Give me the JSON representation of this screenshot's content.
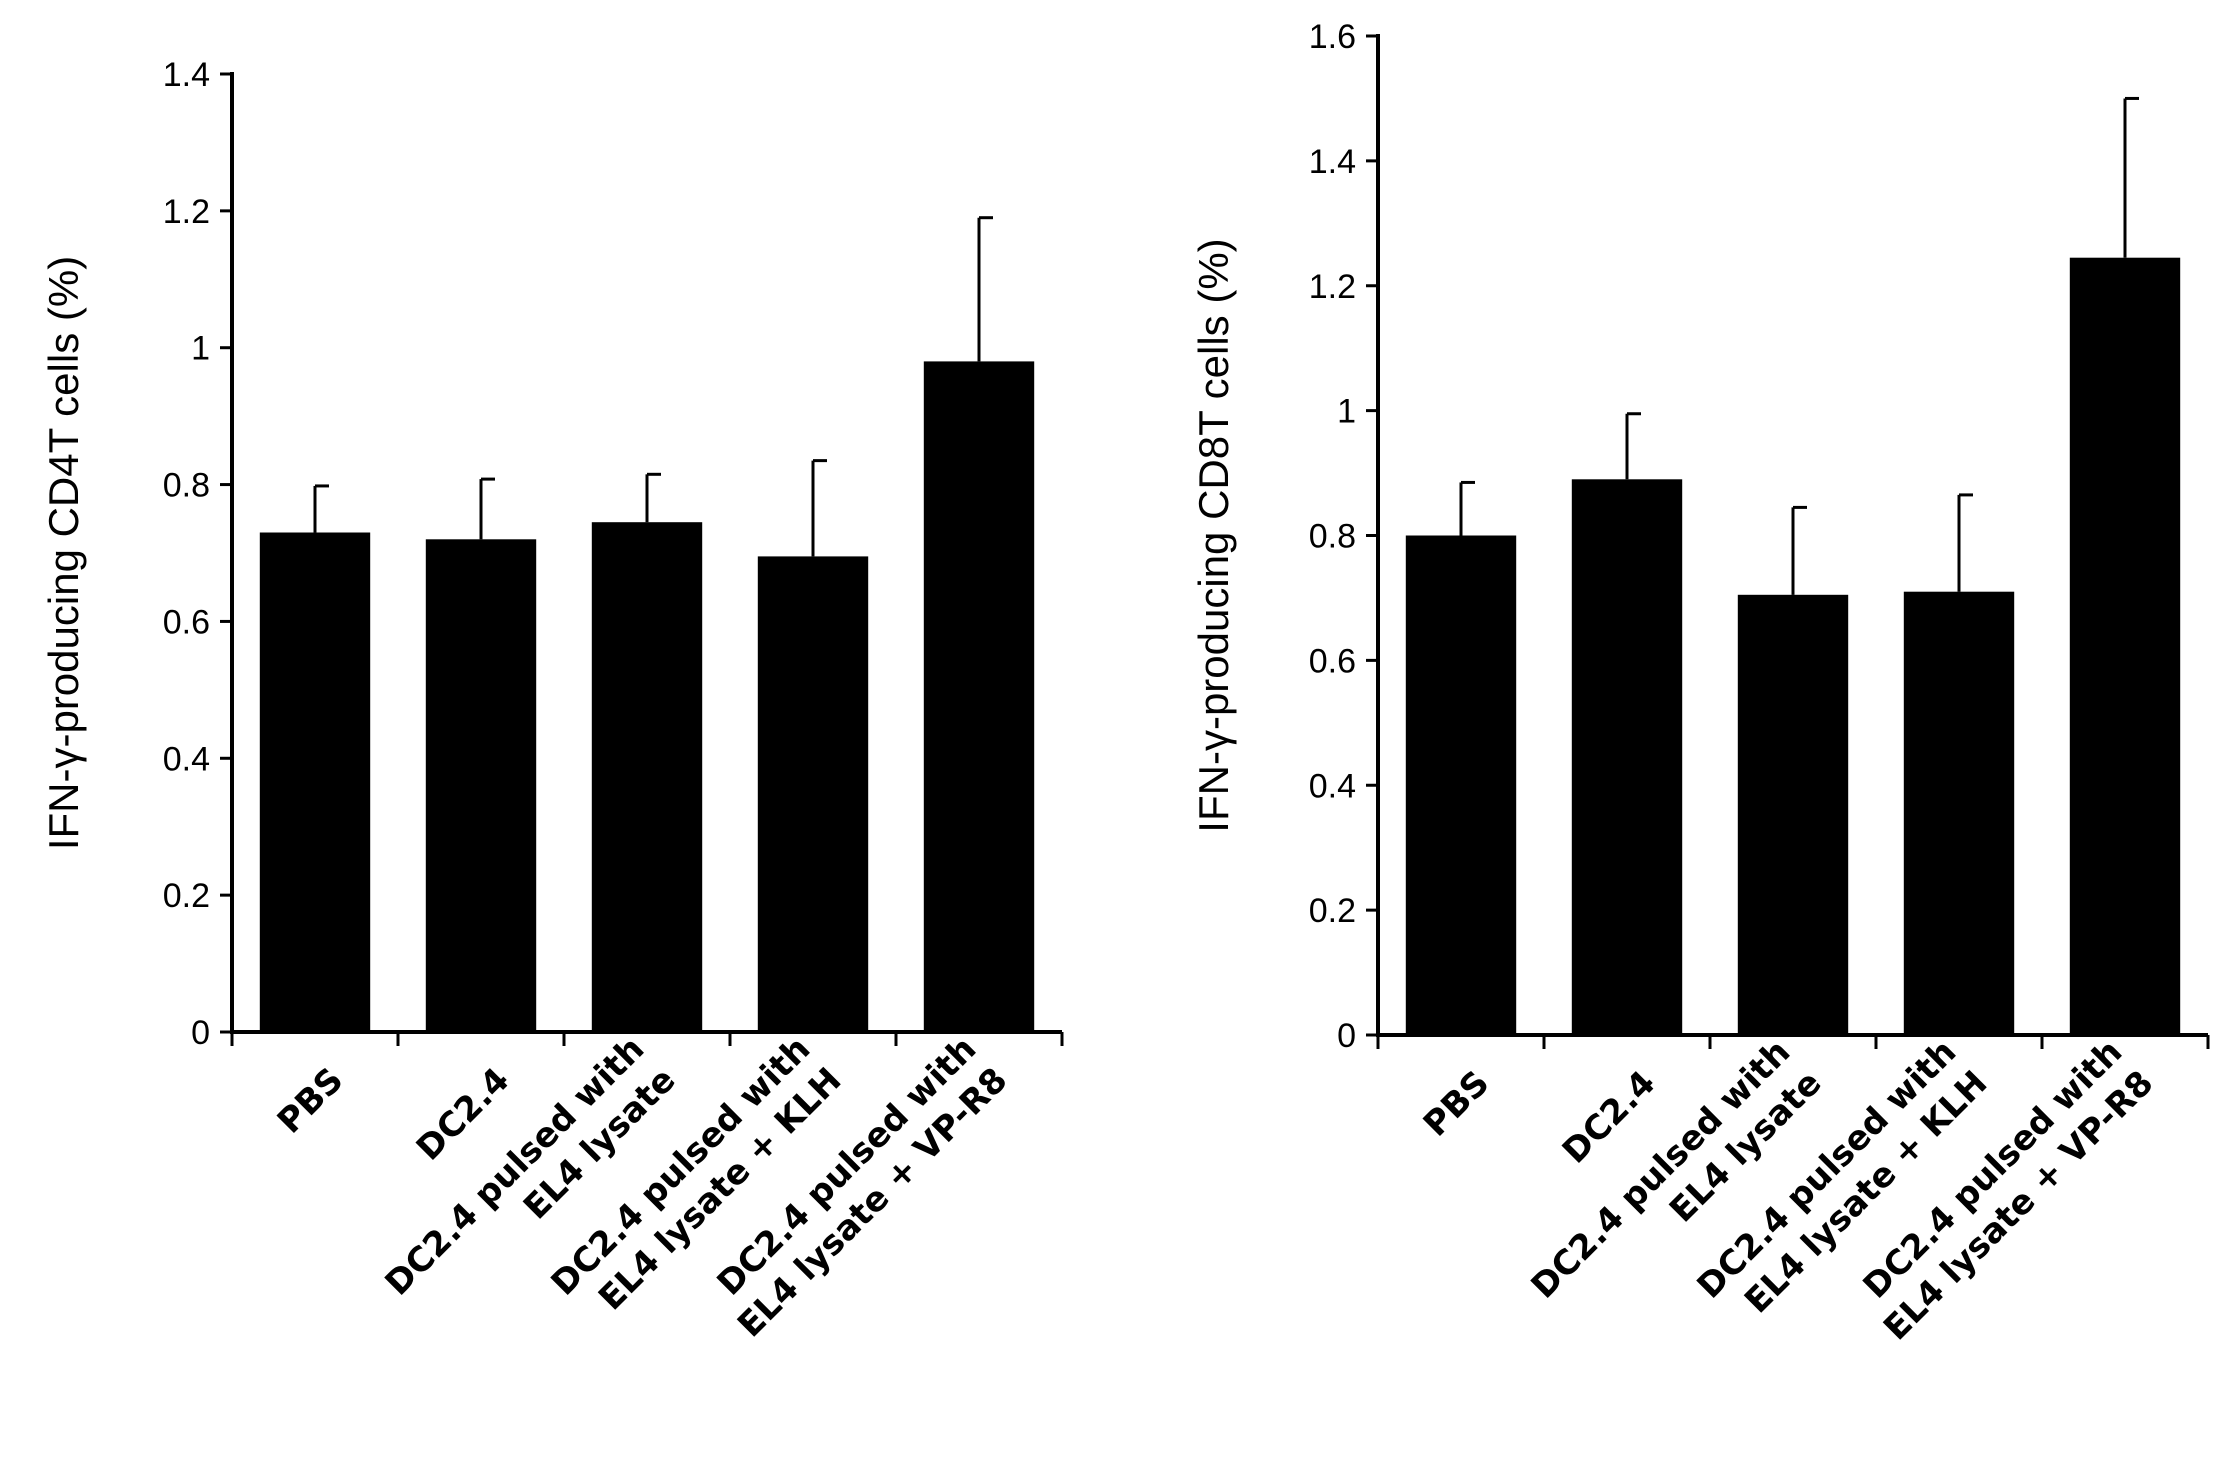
{
  "chart_data": [
    {
      "type": "bar",
      "title": "",
      "xlabel": "",
      "ylabel": "IFN-γ-producing CD4T cells (%)",
      "ylim": [
        0,
        1.4
      ],
      "yticks": [
        "0",
        "0.2",
        "0.4",
        "0.6",
        "0.8",
        "1",
        "1.2",
        "1.4"
      ],
      "categories": [
        [
          "PBS"
        ],
        [
          "DC2.4"
        ],
        [
          "DC2.4 pulsed with",
          "EL4 lysate"
        ],
        [
          "DC2.4 pulsed with",
          "EL4 lysate + KLH"
        ],
        [
          "DC2.4 pulsed with",
          "EL4 lysate + VP-R8"
        ]
      ],
      "values": [
        0.73,
        0.72,
        0.745,
        0.695,
        0.98
      ],
      "errors": [
        0.068,
        0.088,
        0.07,
        0.14,
        0.21
      ],
      "bar_color": "#000000"
    },
    {
      "type": "bar",
      "title": "",
      "xlabel": "",
      "ylabel": "IFN-γ-producing CD8T cells (%)",
      "ylim": [
        0,
        1.6
      ],
      "yticks": [
        "0",
        "0.2",
        "0.4",
        "0.6",
        "0.8",
        "1",
        "1.2",
        "1.4",
        "1.6"
      ],
      "categories": [
        [
          "PBS"
        ],
        [
          "DC2.4"
        ],
        [
          "DC2.4 pulsed with",
          "EL4 lysate"
        ],
        [
          "DC2.4 pulsed with",
          "EL4 lysate + KLH"
        ],
        [
          "DC2.4 pulsed with",
          "EL4 lysate + VP-R8"
        ]
      ],
      "values": [
        0.8,
        0.89,
        0.705,
        0.71,
        1.245
      ],
      "errors": [
        0.085,
        0.105,
        0.14,
        0.155,
        0.255
      ],
      "bar_color": "#000000"
    }
  ]
}
